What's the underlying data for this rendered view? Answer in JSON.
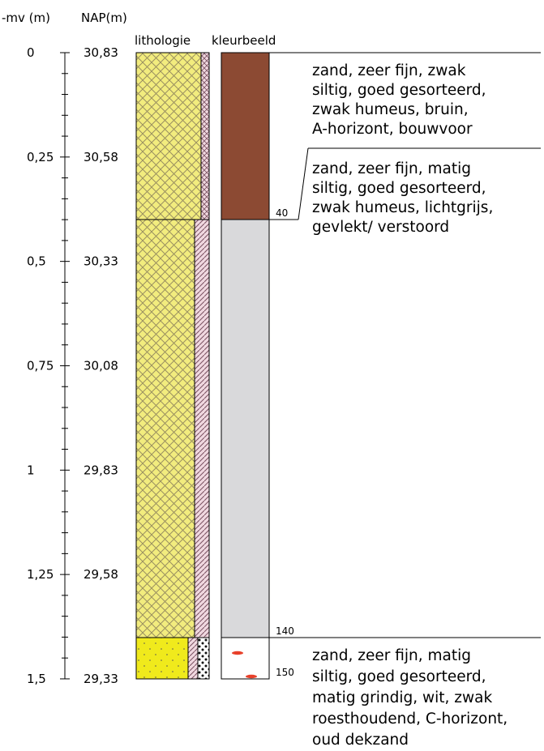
{
  "headers": {
    "mv": "-mv (m)",
    "nap": "NAP(m)",
    "lithology": "lithologie",
    "colour": "kleurbeeld"
  },
  "depth_labels": [
    {
      "depth": 0,
      "mv": "0",
      "nap": "30,83"
    },
    {
      "depth": 0.25,
      "mv": "0,25",
      "nap": "30,58"
    },
    {
      "depth": 0.5,
      "mv": "0,5",
      "nap": "30,33"
    },
    {
      "depth": 0.75,
      "mv": "0,75",
      "nap": "30,08"
    },
    {
      "depth": 1,
      "mv": "1",
      "nap": "29,83"
    },
    {
      "depth": 1.25,
      "mv": "1,25",
      "nap": "29,58"
    },
    {
      "depth": 1.5,
      "mv": "1,5",
      "nap": "29,33"
    }
  ],
  "boundaries": [
    {
      "depth_cm": 40,
      "label": "40"
    },
    {
      "depth_cm": 140,
      "label": "140"
    },
    {
      "depth_cm": 150,
      "label": "150"
    }
  ],
  "layers": [
    {
      "name": "layer-1",
      "top_cm": 0,
      "bottom_cm": 23,
      "colour": "#8c4a33",
      "description": [
        "zand, zeer fijn, zwak",
        "siltig, goed gesorteerd,",
        "zwak humeus, bruin,",
        "A-horizont, bouwvoor"
      ]
    },
    {
      "name": "layer-2",
      "top_cm": 23,
      "bottom_cm": 40,
      "colour": "#8c4a33",
      "description": [
        "zand, zeer fijn, matig",
        "siltig, goed gesorteerd,",
        "zwak humeus, lichtgrijs,",
        "gevlekt/ verstoord"
      ]
    },
    {
      "name": "layer-3",
      "top_cm": 40,
      "bottom_cm": 140,
      "colour": "#d9d9db",
      "description": []
    },
    {
      "name": "layer-4",
      "top_cm": 140,
      "bottom_cm": 150,
      "colour": "#ffffff",
      "description": [
        "zand, zeer fijn, matig",
        "siltig, goed gesorteerd,",
        "matig grindig, wit, zwak",
        "roesthoudend, C-horizont,",
        "oud dekzand"
      ]
    }
  ],
  "colours": {
    "lithology_sand": "#f2ec7e",
    "lithology_hatch": "#9a9060",
    "silt_fill": "#f0d8e0",
    "bottom_sand": "#f0ea1c",
    "rust_spot": "#e8402a"
  }
}
